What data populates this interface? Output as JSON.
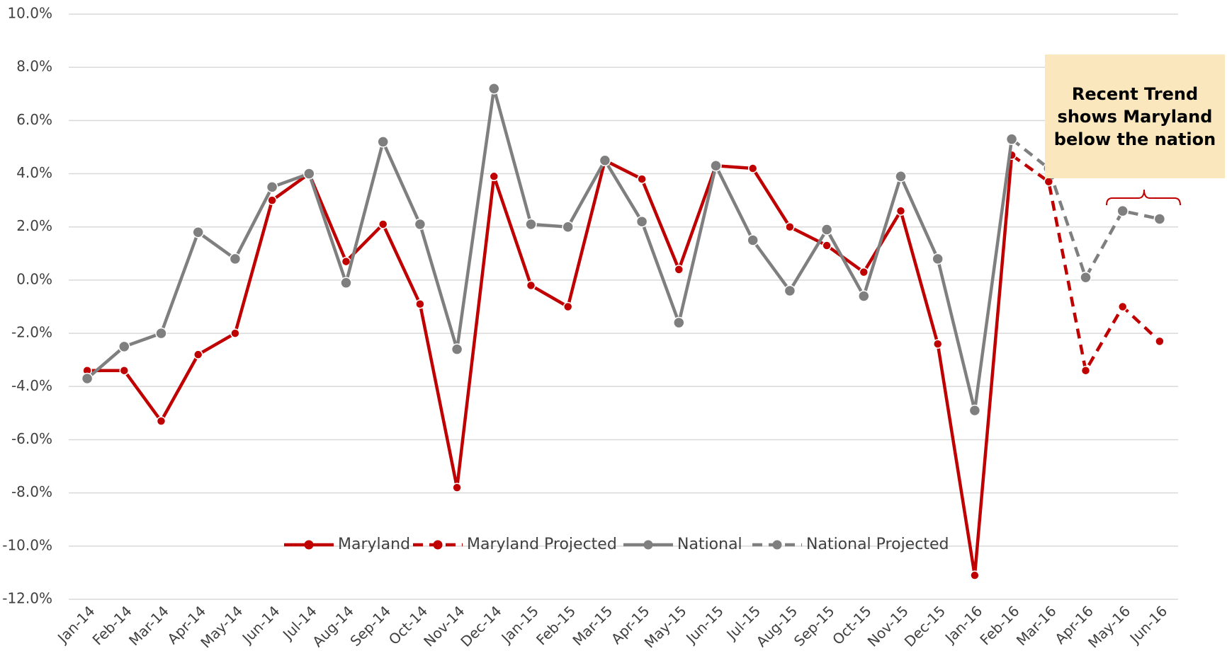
{
  "chart_data": {
    "type": "line",
    "categories": [
      "Jan-14",
      "Feb-14",
      "Mar-14",
      "Apr-14",
      "May-14",
      "Jun-14",
      "Jul-14",
      "Aug-14",
      "Sep-14",
      "Oct-14",
      "Nov-14",
      "Dec-14",
      "Jan-15",
      "Feb-15",
      "Mar-15",
      "Apr-15",
      "May-15",
      "Jun-15",
      "Jul-15",
      "Aug-15",
      "Sep-15",
      "Oct-15",
      "Nov-15",
      "Dec-15",
      "Jan-16",
      "Feb-16",
      "Mar-16",
      "Apr-16",
      "May-16",
      "Jun-16"
    ],
    "series": [
      {
        "name": "Maryland",
        "color": "#c00000",
        "dashed": false,
        "values": [
          -3.4,
          -3.4,
          -5.3,
          -2.8,
          -2.0,
          3.0,
          4.0,
          0.7,
          2.1,
          -0.9,
          -7.8,
          3.9,
          -0.2,
          -1.0,
          4.5,
          3.8,
          0.4,
          4.3,
          4.2,
          2.0,
          1.3,
          0.3,
          2.6,
          -2.4,
          -11.1,
          4.7,
          null,
          null,
          null,
          null
        ]
      },
      {
        "name": "Maryland Projected",
        "color": "#c00000",
        "dashed": true,
        "values": [
          null,
          null,
          null,
          null,
          null,
          null,
          null,
          null,
          null,
          null,
          null,
          null,
          null,
          null,
          null,
          null,
          null,
          null,
          null,
          null,
          null,
          null,
          null,
          null,
          null,
          4.7,
          3.7,
          -3.4,
          -1.0,
          -2.3
        ]
      },
      {
        "name": "National",
        "color": "#7f7f7f",
        "dashed": false,
        "values": [
          -3.7,
          -2.5,
          -2.0,
          1.8,
          0.8,
          3.5,
          4.0,
          -0.1,
          5.2,
          2.1,
          -2.6,
          7.2,
          2.1,
          2.0,
          4.5,
          2.2,
          -1.6,
          4.3,
          1.5,
          -0.4,
          1.9,
          -0.6,
          3.9,
          0.8,
          -4.9,
          5.3,
          null,
          null,
          null,
          null
        ]
      },
      {
        "name": "National Projected",
        "color": "#7f7f7f",
        "dashed": true,
        "values": [
          null,
          null,
          null,
          null,
          null,
          null,
          null,
          null,
          null,
          null,
          null,
          null,
          null,
          null,
          null,
          null,
          null,
          null,
          null,
          null,
          null,
          null,
          null,
          null,
          null,
          5.3,
          4.2,
          0.1,
          2.6,
          2.3
        ]
      }
    ],
    "ylim": [
      -12,
      10
    ],
    "yticks": [
      {
        "value": -12,
        "label": "-12.0%"
      },
      {
        "value": -10,
        "label": "-10.0%"
      },
      {
        "value": -8,
        "label": "-8.0%"
      },
      {
        "value": -6,
        "label": "-6.0%"
      },
      {
        "value": -4,
        "label": "-4.0%"
      },
      {
        "value": -2,
        "label": "-2.0%"
      },
      {
        "value": 0,
        "label": "0.0%"
      },
      {
        "value": 2,
        "label": "2.0%"
      },
      {
        "value": 4,
        "label": "4.0%"
      },
      {
        "value": 6,
        "label": "6.0%"
      },
      {
        "value": 8,
        "label": "8.0%"
      },
      {
        "value": 10,
        "label": "10.0%"
      }
    ],
    "grid": true,
    "legend": "bottom",
    "annotation": "Recent Trend shows Maryland below the nation"
  }
}
